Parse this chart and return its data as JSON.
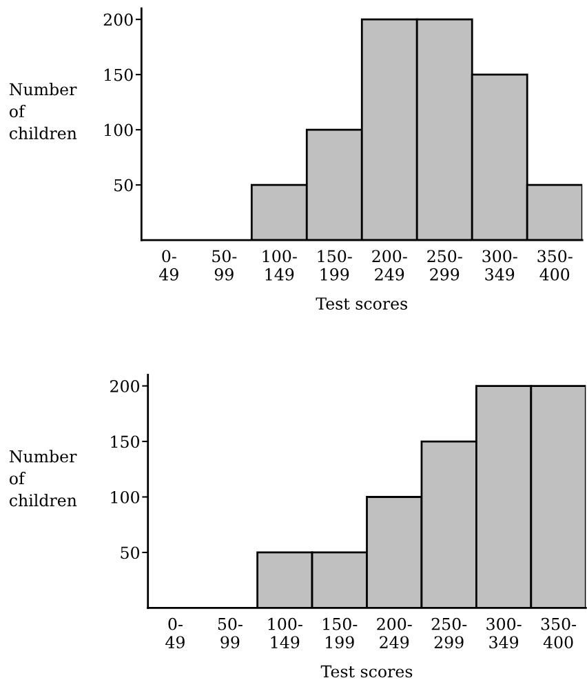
{
  "chart_data": [
    {
      "type": "bar",
      "categories": [
        "0-\n49",
        "50-\n99",
        "100-\n149",
        "150-\n199",
        "200-\n249",
        "250-\n299",
        "300-\n349",
        "350-\n400"
      ],
      "values": [
        0,
        0,
        50,
        100,
        200,
        200,
        150,
        50
      ],
      "color": "#c0c0c0",
      "xlabel": "Test scores",
      "ylabel": "Number\nof\nchildren",
      "ylim": [
        0,
        210
      ],
      "yticks": [
        50,
        100,
        150,
        200
      ],
      "grid": false,
      "legend": false
    },
    {
      "type": "bar",
      "categories": [
        "0-\n49",
        "50-\n99",
        "100-\n149",
        "150-\n199",
        "200-\n249",
        "250-\n299",
        "300-\n349",
        "350-\n400"
      ],
      "values": [
        0,
        0,
        50,
        50,
        100,
        150,
        200,
        200
      ],
      "color": "#c0c0c0",
      "xlabel": "Test scores",
      "ylabel": "Number\nof\nchildren",
      "ylim": [
        0,
        210
      ],
      "yticks": [
        50,
        100,
        150,
        200
      ],
      "grid": false,
      "legend": false
    }
  ]
}
